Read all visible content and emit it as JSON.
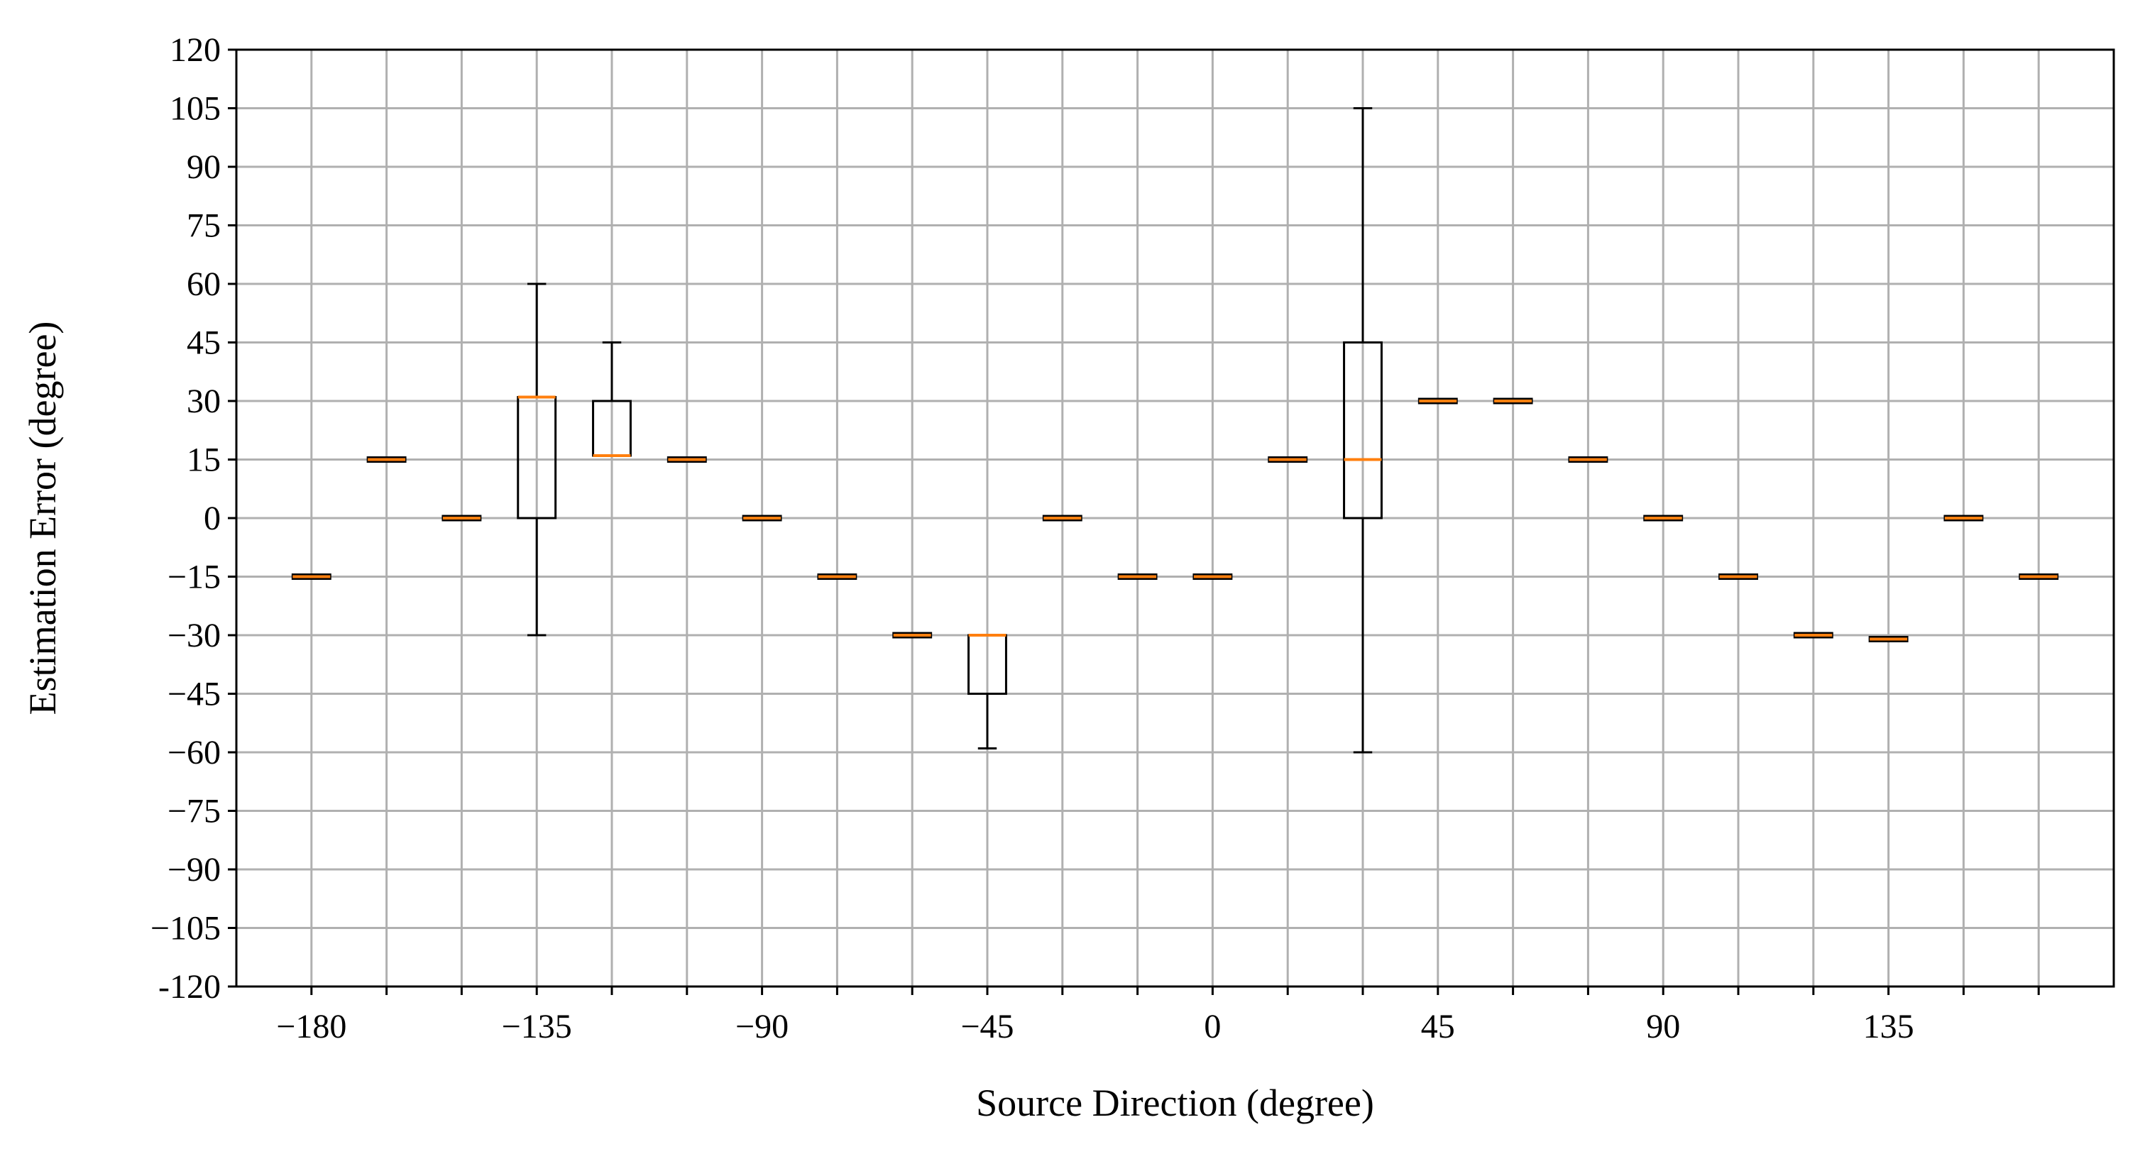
{
  "chart_data": {
    "type": "box",
    "title": "",
    "xlabel": "Source Direction (degree)",
    "ylabel": "Estimation Error (degree)",
    "xlim": [
      -195,
      180
    ],
    "ylim": [
      -120,
      120
    ],
    "grid": true,
    "x_ticks": [
      -180,
      -165,
      -150,
      -135,
      -120,
      -105,
      -90,
      -75,
      -60,
      -45,
      -30,
      -15,
      0,
      15,
      30,
      45,
      60,
      75,
      90,
      105,
      120,
      135,
      150,
      165
    ],
    "x_tick_labels": [
      "−180",
      "",
      "",
      "−135",
      "",
      "",
      "−90",
      "",
      "",
      "−45",
      "",
      "",
      "0",
      "",
      "",
      "45",
      "",
      "",
      "90",
      "",
      "",
      "135",
      "",
      ""
    ],
    "y_ticks": [
      -120,
      -105,
      -90,
      -75,
      -60,
      -45,
      -30,
      -15,
      0,
      15,
      30,
      45,
      60,
      75,
      90,
      105,
      120
    ],
    "y_tick_labels": [
      "-120",
      "−105",
      "−90",
      "−75",
      "−60",
      "−45",
      "−30",
      "−15",
      "0",
      "15",
      "30",
      "45",
      "60",
      "75",
      "90",
      "105",
      "120"
    ],
    "colors": {
      "box": "#000000",
      "median": "#ff7f0e",
      "grid": "#b0b0b0"
    },
    "boxes": [
      {
        "x": -180,
        "whislo": -15,
        "q1": -15,
        "med": -15,
        "q3": -15,
        "whishi": -15
      },
      {
        "x": -165,
        "whislo": 15,
        "q1": 15,
        "med": 15,
        "q3": 15,
        "whishi": 15
      },
      {
        "x": -150,
        "whislo": 0,
        "q1": 0,
        "med": 0,
        "q3": 0,
        "whishi": 0
      },
      {
        "x": -135,
        "whislo": -30,
        "q1": 0,
        "med": 31,
        "q3": 31,
        "whishi": 60
      },
      {
        "x": -120,
        "whislo": 16,
        "q1": 16,
        "med": 16,
        "q3": 30,
        "whishi": 45
      },
      {
        "x": -105,
        "whislo": 15,
        "q1": 15,
        "med": 15,
        "q3": 15,
        "whishi": 15
      },
      {
        "x": -90,
        "whislo": 0,
        "q1": 0,
        "med": 0,
        "q3": 0,
        "whishi": 0
      },
      {
        "x": -75,
        "whislo": -15,
        "q1": -15,
        "med": -15,
        "q3": -15,
        "whishi": -15
      },
      {
        "x": -60,
        "whislo": -30,
        "q1": -30,
        "med": -30,
        "q3": -30,
        "whishi": -30
      },
      {
        "x": -45,
        "whislo": -59,
        "q1": -45,
        "med": -30,
        "q3": -30,
        "whishi": -30
      },
      {
        "x": -30,
        "whislo": 0,
        "q1": 0,
        "med": 0,
        "q3": 0,
        "whishi": 0
      },
      {
        "x": -15,
        "whislo": -15,
        "q1": -15,
        "med": -15,
        "q3": -15,
        "whishi": -15
      },
      {
        "x": 0,
        "whislo": -15,
        "q1": -15,
        "med": -15,
        "q3": -15,
        "whishi": -15
      },
      {
        "x": 15,
        "whislo": 15,
        "q1": 15,
        "med": 15,
        "q3": 15,
        "whishi": 15
      },
      {
        "x": 30,
        "whislo": -60,
        "q1": 0,
        "med": 15,
        "q3": 45,
        "whishi": 105
      },
      {
        "x": 45,
        "whislo": 30,
        "q1": 30,
        "med": 30,
        "q3": 30,
        "whishi": 30
      },
      {
        "x": 60,
        "whislo": 30,
        "q1": 30,
        "med": 30,
        "q3": 30,
        "whishi": 30
      },
      {
        "x": 75,
        "whislo": 15,
        "q1": 15,
        "med": 15,
        "q3": 15,
        "whishi": 15
      },
      {
        "x": 90,
        "whislo": 0,
        "q1": 0,
        "med": 0,
        "q3": 0,
        "whishi": 0
      },
      {
        "x": 105,
        "whislo": -15,
        "q1": -15,
        "med": -15,
        "q3": -15,
        "whishi": -15
      },
      {
        "x": 120,
        "whislo": -30,
        "q1": -30,
        "med": -30,
        "q3": -30,
        "whishi": -30
      },
      {
        "x": 135,
        "whislo": -31,
        "q1": -31,
        "med": -31,
        "q3": -31,
        "whishi": -31
      },
      {
        "x": 150,
        "whislo": 0,
        "q1": 0,
        "med": 0,
        "q3": 0,
        "whishi": 0
      },
      {
        "x": 165,
        "whislo": -15,
        "q1": -15,
        "med": -15,
        "q3": -15,
        "whishi": -15
      }
    ]
  }
}
